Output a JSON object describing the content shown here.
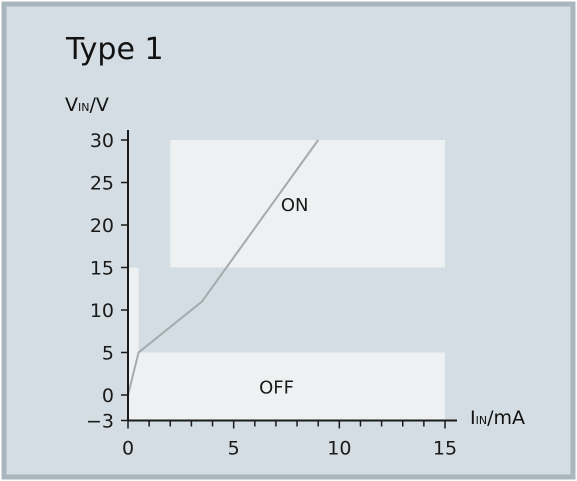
{
  "colors": {
    "background": "#d3dde3",
    "border": "#a9b6bd",
    "region_fill": "#eef1f2",
    "curve": "#a5aaac",
    "axis": "#1a1a1a"
  },
  "chart_data": {
    "type": "line",
    "title": "Type 1",
    "ylabel": {
      "main": "V",
      "sub": "IN",
      "unit": "/V"
    },
    "xlabel": {
      "main": "I",
      "sub": "IN",
      "unit": "/mA"
    },
    "xlim": [
      0,
      15
    ],
    "ylim": [
      -3,
      30
    ],
    "x_ticks": [
      0,
      5,
      10,
      15
    ],
    "y_ticks": [
      -3,
      0,
      5,
      10,
      15,
      20,
      25,
      30
    ],
    "y_tick_labels": [
      "−3",
      "0",
      "5",
      "10",
      "15",
      "20",
      "25",
      "30"
    ],
    "x_minor_step": 1,
    "grid": false,
    "regions": [
      {
        "name": "ON",
        "label": "ON",
        "x": [
          2,
          15
        ],
        "y": [
          15,
          30
        ]
      },
      {
        "name": "OFF",
        "label": "OFF",
        "x": [
          0,
          15
        ],
        "y": [
          -3,
          5
        ]
      },
      {
        "name": "transition",
        "label": "",
        "x": [
          0,
          0.5
        ],
        "y": [
          -3,
          15
        ]
      }
    ],
    "series": [
      {
        "x": [
          0,
          0.5,
          3.5,
          9
        ],
        "y": [
          0,
          5,
          11,
          30
        ]
      }
    ]
  }
}
